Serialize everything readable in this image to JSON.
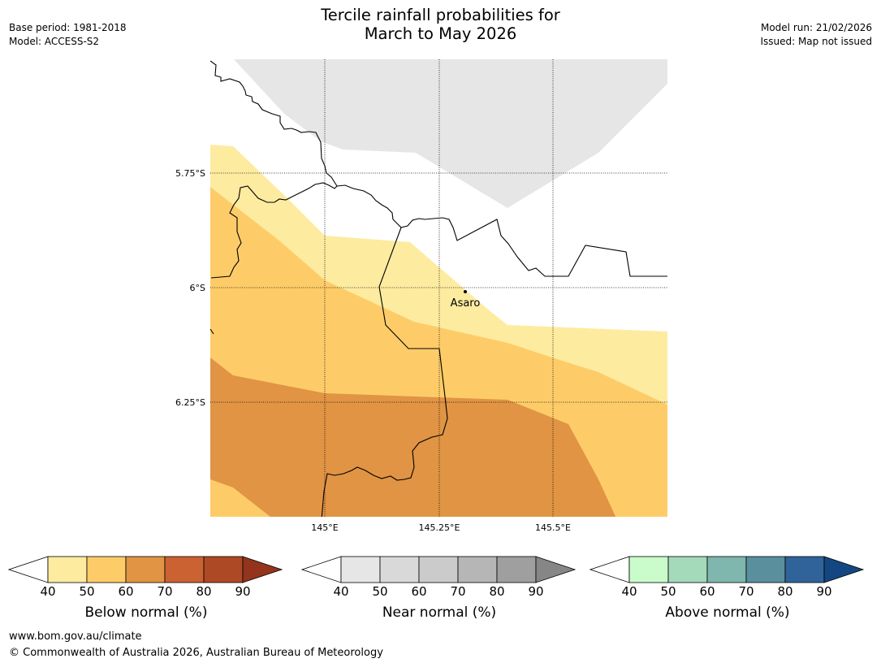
{
  "title": {
    "line1": "Tercile rainfall probabilities for",
    "line2": "March to May 2026"
  },
  "meta_left": {
    "base_period": "Base period: 1981-2018",
    "model": "Model: ACCESS-S2"
  },
  "meta_right": {
    "model_run": "Model run: 21/02/2026",
    "issued": "Issued: Map not issued"
  },
  "map": {
    "latitude_labels": [
      "5.75°S",
      "6°S",
      "6.25°S"
    ],
    "longitude_labels": [
      "145°E",
      "145.25°E",
      "145.5°E"
    ],
    "place": {
      "name": "Asaro"
    },
    "fill_colors": {
      "below_40_50": "#fdeba0",
      "below_50_60": "#fdcc68",
      "below_60_70": "#e09444",
      "near_40_50": "#e6e6e6"
    }
  },
  "legends": [
    {
      "label": "Below normal (%)",
      "ticks": [
        "40",
        "50",
        "60",
        "70",
        "80",
        "90"
      ],
      "colors": [
        "#fdeba0",
        "#fdcc68",
        "#e09444",
        "#cb6231",
        "#ae4926"
      ],
      "arrow_color": "#94341d"
    },
    {
      "label": "Near normal (%)",
      "ticks": [
        "40",
        "50",
        "60",
        "70",
        "80",
        "90"
      ],
      "colors": [
        "#e6e6e6",
        "#d9d9d9",
        "#cbcbcb",
        "#b6b6b6",
        "#9f9f9f"
      ],
      "arrow_color": "#868686"
    },
    {
      "label": "Above normal (%)",
      "ticks": [
        "40",
        "50",
        "60",
        "70",
        "80",
        "90"
      ],
      "colors": [
        "#c9fcca",
        "#a4d9ba",
        "#7fb6ad",
        "#5a8f9e",
        "#30639a"
      ],
      "arrow_color": "#144781"
    }
  ],
  "footer": {
    "url": "www.bom.gov.au/climate",
    "copyright": "© Commonwealth of Australia 2026, Australian Bureau of Meteorology"
  }
}
